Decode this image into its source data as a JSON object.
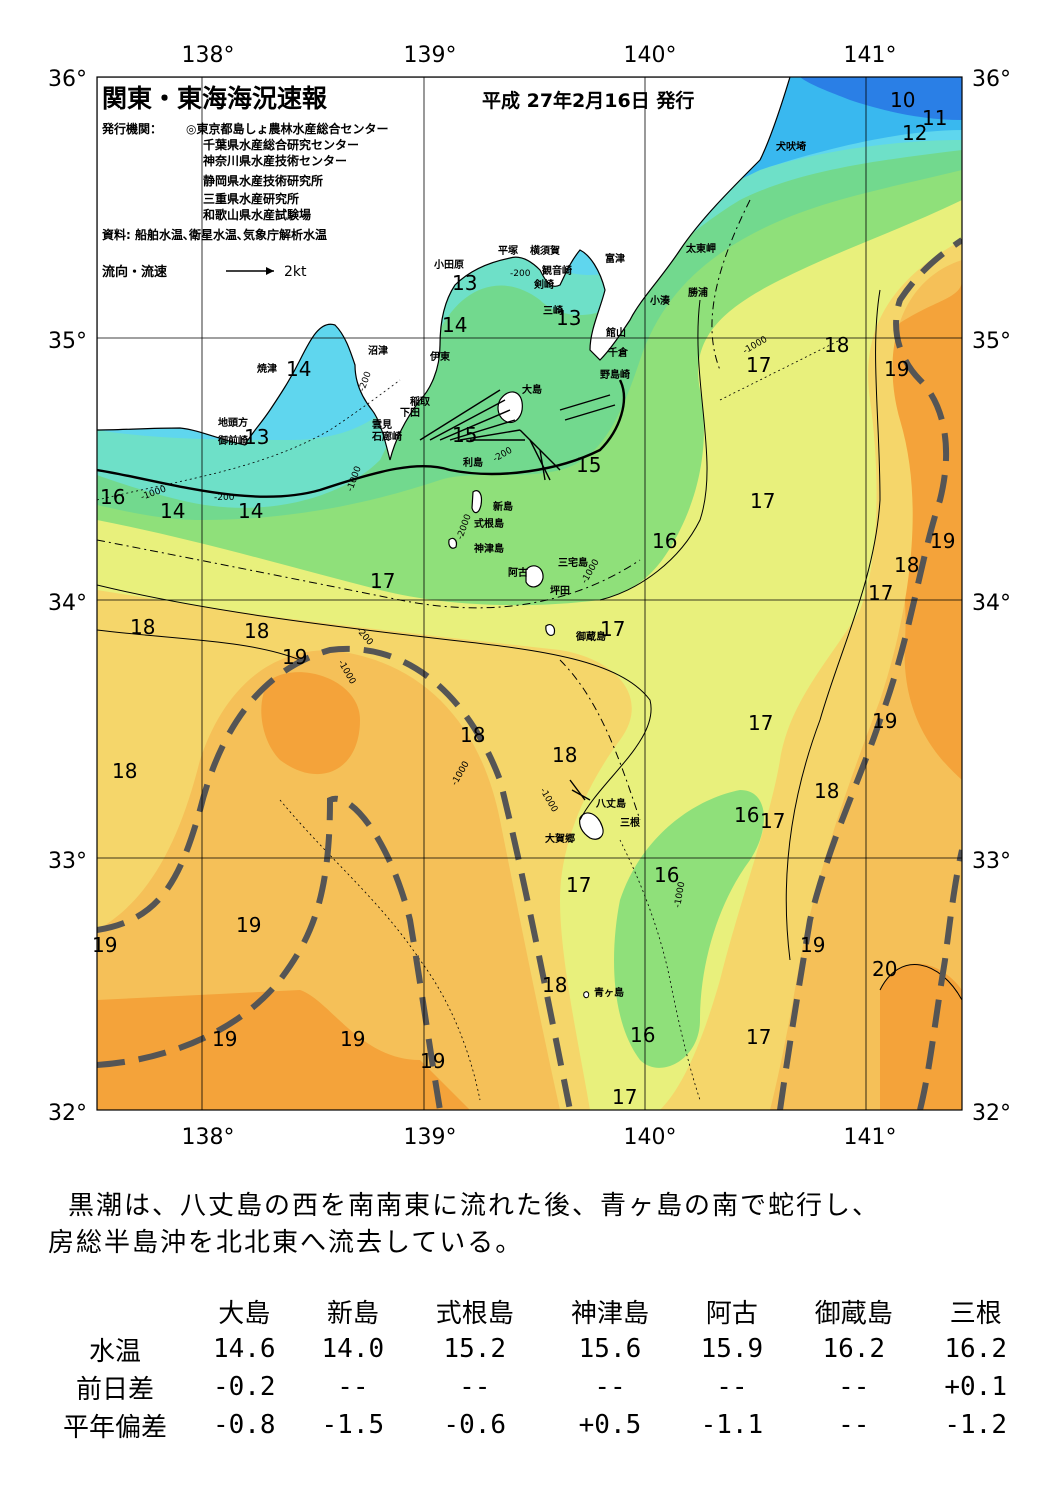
{
  "title": "関東・東海海況速報",
  "issue_date": "平成 27年2月16日 発行",
  "publisher_label": "発行機関：",
  "publishers": [
    "◎東京都島しょ農林水産総合センター",
    "千葉県水産総合研究センター",
    "神奈川県水産技術センター",
    "静岡県水産技術研究所",
    "三重県水産研究所",
    "和歌山県水産試験場"
  ],
  "sources": "資料: 船舶水温､衛星水温､気象庁解析水温",
  "current_legend": {
    "label": "流向・流速",
    "scale": "2kt"
  },
  "axes": {
    "lon_ticks": [
      "138°",
      "139°",
      "140°",
      "141°"
    ],
    "lat_ticks": [
      "36°",
      "35°",
      "34°",
      "33°",
      "32°"
    ]
  },
  "place_labels": [
    {
      "name": "犬吠埼"
    },
    {
      "name": "太東岬"
    },
    {
      "name": "勝浦"
    },
    {
      "name": "小湊"
    },
    {
      "name": "富津"
    },
    {
      "name": "横須賀"
    },
    {
      "name": "観音崎"
    },
    {
      "name": "平塚"
    },
    {
      "name": "小田原"
    },
    {
      "name": "剣崎"
    },
    {
      "name": "三崎"
    },
    {
      "name": "館山"
    },
    {
      "name": "千倉"
    },
    {
      "name": "野島崎"
    },
    {
      "name": "沼津"
    },
    {
      "name": "伊東"
    },
    {
      "name": "焼津"
    },
    {
      "name": "稲取"
    },
    {
      "name": "下田"
    },
    {
      "name": "石廊崎"
    },
    {
      "name": "雲見"
    },
    {
      "name": "地頭方"
    },
    {
      "name": "御前崎"
    },
    {
      "name": "大島"
    },
    {
      "name": "利島"
    },
    {
      "name": "新島"
    },
    {
      "name": "式根島"
    },
    {
      "name": "神津島"
    },
    {
      "name": "三宅島"
    },
    {
      "name": "阿古"
    },
    {
      "name": "坪田"
    },
    {
      "name": "御蔵島"
    },
    {
      "name": "八丈島"
    },
    {
      "name": "三根"
    },
    {
      "name": "大賀郷"
    },
    {
      "name": "青ヶ島"
    }
  ],
  "isotherm_labels": [
    "10",
    "11",
    "12",
    "13",
    "13",
    "13",
    "14",
    "14",
    "14",
    "14",
    "15",
    "15",
    "16",
    "16",
    "16",
    "16",
    "16",
    "17",
    "17",
    "17",
    "17",
    "17",
    "17",
    "17",
    "17",
    "17",
    "17",
    "18",
    "18",
    "18",
    "18",
    "18",
    "18",
    "18",
    "18",
    "18",
    "19",
    "19",
    "19",
    "19",
    "19",
    "19",
    "19",
    "19",
    "19",
    "19",
    "20"
  ],
  "depth_labels": [
    "-200",
    "-200",
    "-200",
    "-200",
    "-200",
    "-1000",
    "-1000",
    "-1000",
    "-1000",
    "-1000",
    "-1000",
    "-1000",
    "-1000",
    "-2000"
  ],
  "summary": {
    "line1": "黒潮は、八丈島の西を南南東に流れた後、青ヶ島の南で蛇行し、",
    "line2": "房総半島沖を北北東へ流去している。"
  },
  "table": {
    "headers": [
      "大島",
      "新島",
      "式根島",
      "神津島",
      "阿古",
      "御蔵島",
      "三根"
    ],
    "rows": [
      {
        "label": "水温",
        "values": [
          "14.6",
          "14.0",
          "15.2",
          "15.6",
          "15.9",
          "16.2",
          "16.2"
        ]
      },
      {
        "label": "前日差",
        "values": [
          "-0.2",
          "--",
          "--",
          "--",
          "--",
          "--",
          "+0.1"
        ]
      },
      {
        "label": "平年偏差",
        "values": [
          "-0.8",
          "-1.5",
          "-0.6",
          "+0.5",
          "-1.1",
          "--",
          "-1.2"
        ]
      }
    ]
  },
  "colors": {
    "t10": "#2a7fe6",
    "t12": "#39b8ef",
    "t13": "#5fd6ee",
    "t14": "#6ee0c8",
    "t15": "#72d98e",
    "t16": "#8fe07a",
    "t17": "#e8f07c",
    "t18": "#f5d66a",
    "t19": "#f5c058",
    "t20": "#f4a33a",
    "land": "#ffffff",
    "kuroshio": "#555555"
  }
}
